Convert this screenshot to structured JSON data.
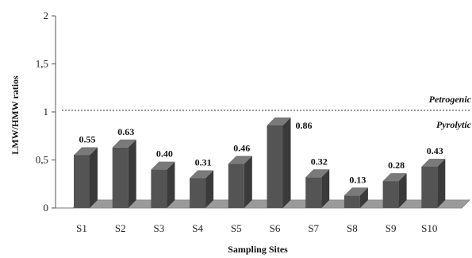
{
  "chart_data": {
    "type": "bar",
    "categories": [
      "S1",
      "S2",
      "S3",
      "S4",
      "S5",
      "S6",
      "S7",
      "S8",
      "S9",
      "S10"
    ],
    "values": [
      0.55,
      0.63,
      0.4,
      0.31,
      0.46,
      0.86,
      0.32,
      0.13,
      0.28,
      0.43
    ],
    "value_labels": [
      "0.55",
      "0.63",
      "0.40",
      "0.31",
      "0.46",
      "0.86",
      "0.32",
      "0.13",
      "0.28",
      "0.43"
    ],
    "xlabel": "Sampling Sites",
    "ylabel": "LMW/HMW ratios",
    "ylim": [
      0,
      2
    ],
    "yticks": [
      0,
      0.5,
      1,
      1.5,
      2
    ],
    "ytick_labels": [
      "0",
      "0,5",
      "1",
      "1,5",
      "2"
    ],
    "grid": false,
    "reference_line": {
      "value": 1,
      "style": "dotted"
    },
    "annotations": {
      "above_line": "Petrogenic",
      "below_line": "Pyrolytic"
    },
    "colors": {
      "bar_front": "#545454",
      "bar_side": "#3a3a3a",
      "bar_top": "#7a7a7a",
      "floor": "#9a9a9a"
    }
  }
}
